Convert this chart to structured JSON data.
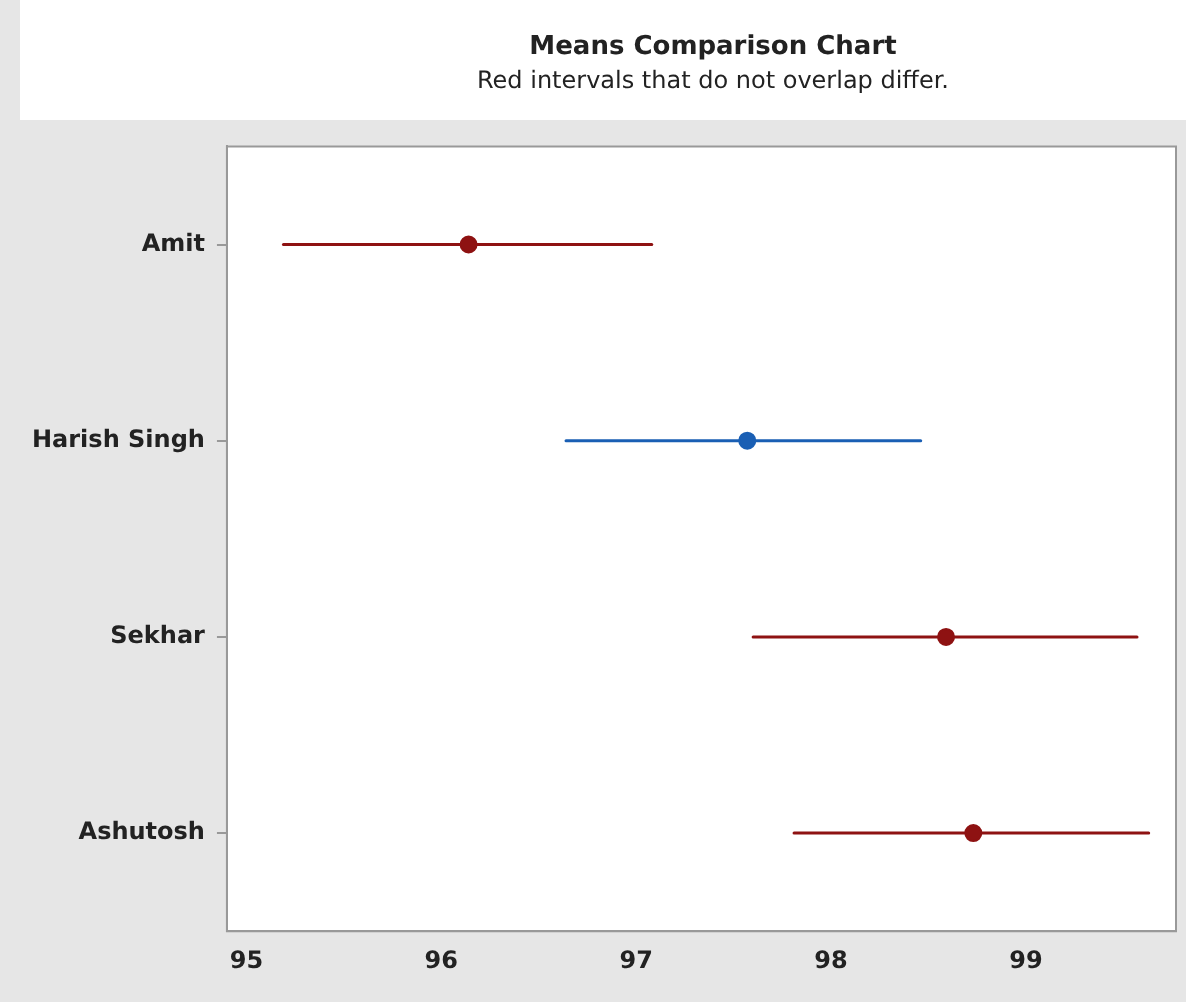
{
  "chart_data": {
    "type": "scatter",
    "orientation": "horizontal",
    "title": "Means Comparison Chart",
    "subtitle": "Red intervals that do not overlap differ.",
    "categories": [
      "Amit",
      "Harish Singh",
      "Sekhar",
      "Ashutosh"
    ],
    "values": [
      96.14,
      97.57,
      98.59,
      98.73
    ],
    "colors": [
      "#8e1212",
      "#1a5fb4",
      "#8e1212",
      "#8e1212"
    ],
    "errors": [
      [
        95.19,
        97.08
      ],
      [
        96.64,
        98.46
      ],
      [
        97.6,
        99.57
      ],
      [
        97.81,
        99.63
      ]
    ],
    "xlim": [
      94.9,
      99.77
    ],
    "xticks": [
      95,
      96,
      97,
      98,
      99
    ],
    "grid": false,
    "legend": false,
    "marker": "circle"
  }
}
